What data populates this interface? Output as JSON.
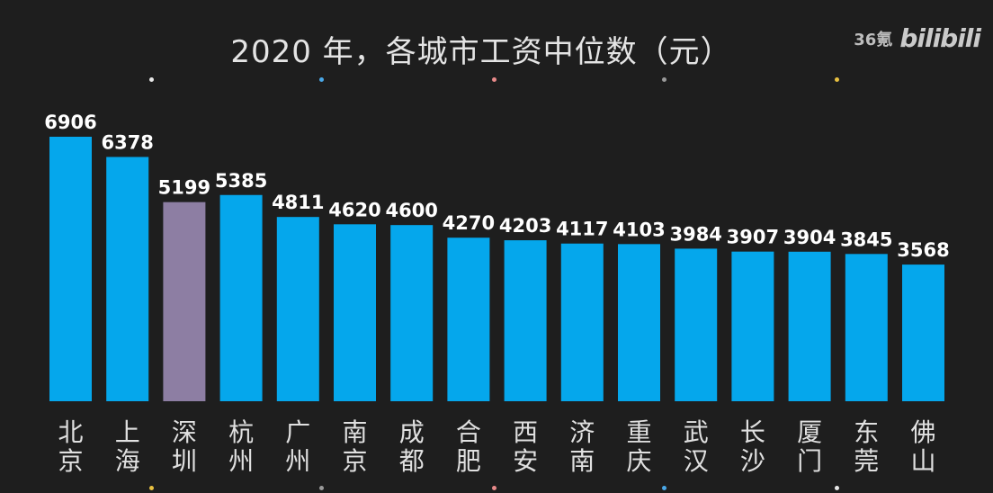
{
  "title": "2020 年，各城市工资中位数（元）",
  "watermark": {
    "left_text": "36氪",
    "right_text": "bilibili"
  },
  "colors": {
    "bar": "#05a7ec",
    "highlight": "#8d7ea3",
    "background": "#1e1e1e",
    "value_label": "#ffffff",
    "category_label": "#e0e0e0"
  },
  "chart_data": {
    "type": "bar",
    "title": "2020 年，各城市工资中位数（元）",
    "xlabel": "",
    "ylabel": "",
    "ylim": [
      0,
      7000
    ],
    "grid": false,
    "highlight_category": "深圳",
    "categories": [
      "北京",
      "上海",
      "深圳",
      "杭州",
      "广州",
      "南京",
      "成都",
      "合肥",
      "西安",
      "济南",
      "重庆",
      "武汉",
      "长沙",
      "厦门",
      "东莞",
      "佛山"
    ],
    "values": [
      6906,
      6378,
      5199,
      5385,
      4811,
      4620,
      4600,
      4270,
      4203,
      4117,
      4103,
      3984,
      3907,
      3904,
      3845,
      3568
    ]
  }
}
